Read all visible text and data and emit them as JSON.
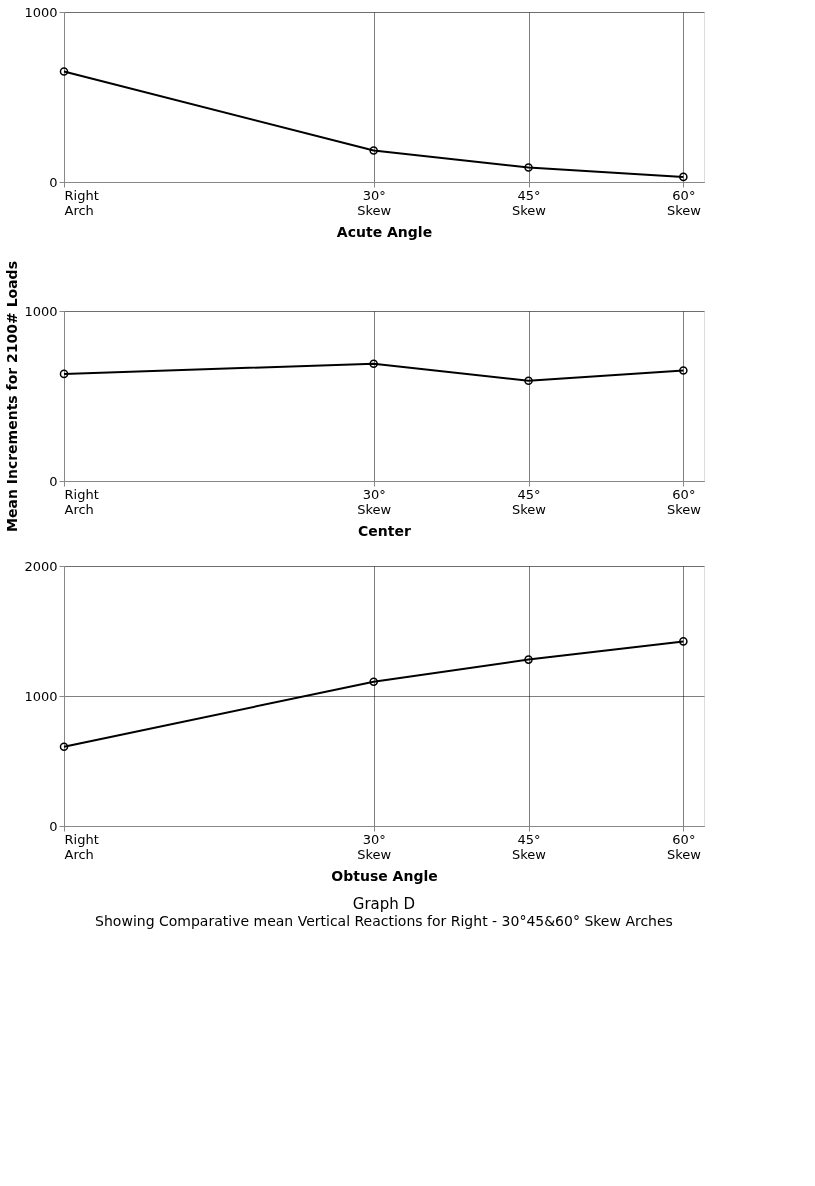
{
  "chart_data": [
    {
      "type": "line",
      "xlabel": "Acute Angle",
      "x": [
        0,
        30,
        45,
        60
      ],
      "xlim": [
        0,
        62
      ],
      "xticks": [
        {
          "value": 0,
          "label": "Right Arch"
        },
        {
          "value": 30,
          "label": "30° Skew"
        },
        {
          "value": 45,
          "label": "45° Skew"
        },
        {
          "value": 60,
          "label": "60° Skew"
        }
      ],
      "series": [
        {
          "color": "#000000",
          "values": [
            650,
            185,
            85,
            30
          ]
        }
      ],
      "ylim": [
        0,
        1000
      ],
      "yticks": [
        0,
        1000
      ],
      "grid": true,
      "marker": "circle",
      "line_style": "solid"
    },
    {
      "type": "line",
      "xlabel": "Center",
      "ylabel": "Mean Increments for 2100# Loads",
      "x": [
        0,
        30,
        45,
        60
      ],
      "xlim": [
        0,
        62
      ],
      "xticks": [
        {
          "value": 0,
          "label": "Right Arch"
        },
        {
          "value": 30,
          "label": "30° Skew"
        },
        {
          "value": 45,
          "label": "45° Skew"
        },
        {
          "value": 60,
          "label": "60° Skew"
        }
      ],
      "series": [
        {
          "color": "#000000",
          "values": [
            630,
            690,
            590,
            650
          ]
        }
      ],
      "ylim": [
        0,
        1000
      ],
      "yticks": [
        0,
        1000
      ],
      "grid": true,
      "marker": "circle",
      "line_style": "solid"
    },
    {
      "type": "line",
      "title": "Graph D",
      "subtitle": "Showing Comparative mean Vertical Reactions for Right - 30°45&60° Skew Arches",
      "xlabel": "Obtuse Angle",
      "x": [
        0,
        30,
        45,
        60
      ],
      "xlim": [
        0,
        62
      ],
      "xticks": [
        {
          "value": 0,
          "label": "Right Arch"
        },
        {
          "value": 30,
          "label": "30° Skew"
        },
        {
          "value": 45,
          "label": "45° Skew"
        },
        {
          "value": 60,
          "label": "60° Skew"
        }
      ],
      "series": [
        {
          "color": "#000000",
          "values": [
            610,
            1110,
            1280,
            1420
          ]
        }
      ],
      "ylim": [
        0,
        2000
      ],
      "yticks": [
        0,
        1000,
        2000
      ],
      "grid": true,
      "marker": "circle",
      "line_style": "solid"
    }
  ]
}
